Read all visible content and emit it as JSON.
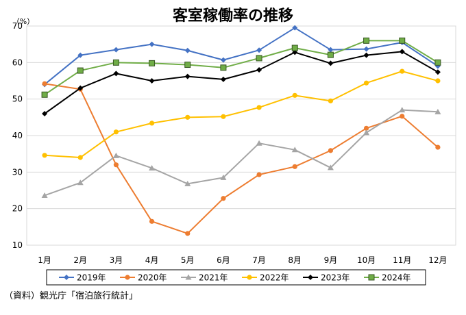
{
  "chart_data": {
    "type": "line",
    "title": "客室稼働率の推移",
    "yunit": "（%）",
    "source": "（資料）観光庁「宿泊旅行統計」",
    "categories": [
      "1月",
      "2月",
      "3月",
      "4月",
      "5月",
      "6月",
      "7月",
      "8月",
      "9月",
      "10月",
      "11月",
      "12月"
    ],
    "ylim": [
      10,
      70
    ],
    "yticks": [
      10,
      20,
      30,
      40,
      50,
      60,
      70
    ],
    "grid": true,
    "legend_position": "bottom",
    "series": [
      {
        "name": "2019年",
        "color": "#4472c4",
        "marker": "diamond",
        "values": [
          54.0,
          62.0,
          63.5,
          65.0,
          63.3,
          60.7,
          63.4,
          69.5,
          63.5,
          63.7,
          65.5,
          59.0
        ]
      },
      {
        "name": "2020年",
        "color": "#ed7d31",
        "marker": "circle",
        "values": [
          54.2,
          52.7,
          32.0,
          16.5,
          13.2,
          22.8,
          29.3,
          31.5,
          35.9,
          42.0,
          45.3,
          36.8
        ]
      },
      {
        "name": "2021年",
        "color": "#a5a5a5",
        "marker": "triangle",
        "values": [
          23.6,
          27.1,
          34.5,
          31.1,
          26.8,
          28.5,
          37.9,
          36.1,
          31.2,
          40.8,
          47.0,
          46.5
        ]
      },
      {
        "name": "2022年",
        "color": "#ffc000",
        "marker": "circle",
        "values": [
          34.6,
          34.0,
          41.0,
          43.4,
          45.0,
          45.2,
          47.7,
          51.0,
          49.5,
          54.4,
          57.6,
          55.0
        ]
      },
      {
        "name": "2023年",
        "color": "#000000",
        "marker": "diamond",
        "values": [
          46.0,
          53.0,
          57.0,
          55.0,
          56.2,
          55.4,
          58.0,
          62.8,
          59.8,
          62.0,
          63.0,
          57.4
        ]
      },
      {
        "name": "2024年",
        "color": "#70ad47",
        "marker": "square",
        "values": [
          51.2,
          57.8,
          60.0,
          59.8,
          59.4,
          58.6,
          61.2,
          64.0,
          62.1,
          66.0,
          66.0,
          60.0
        ]
      }
    ]
  }
}
